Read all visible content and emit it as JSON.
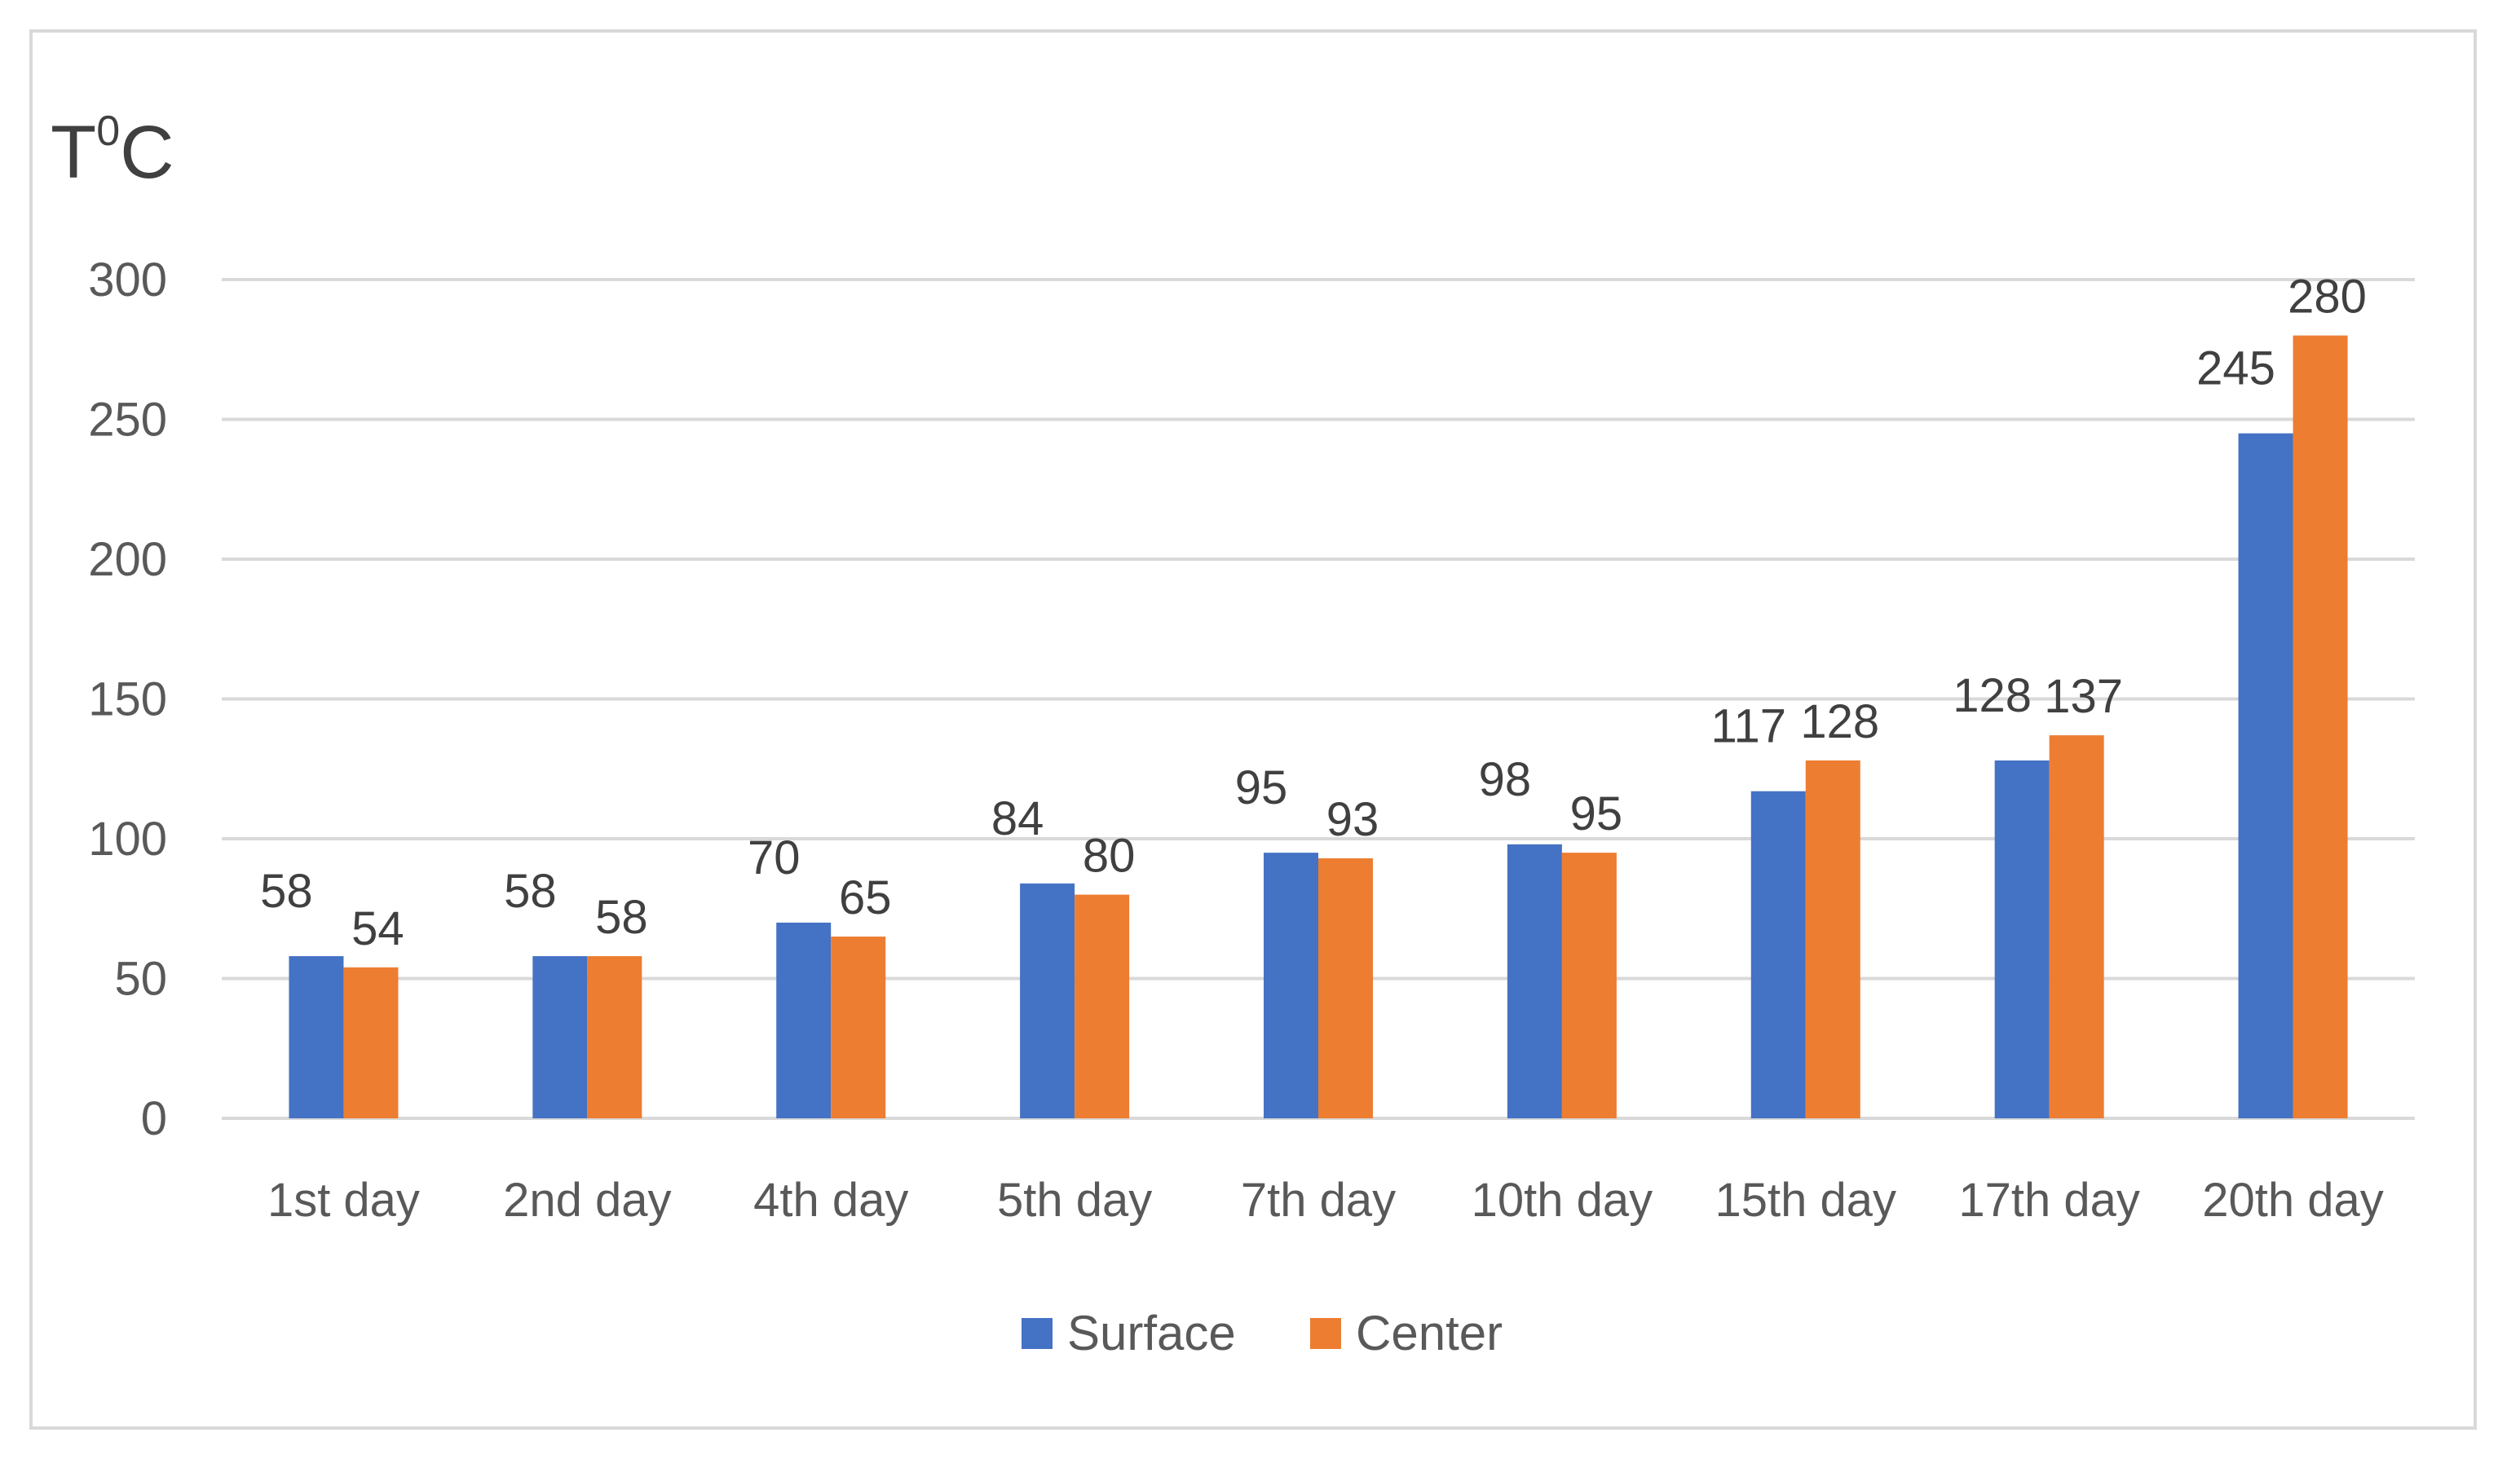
{
  "chart_data": {
    "type": "bar",
    "title": "",
    "xlabel": "",
    "ylabel": {
      "base": "T",
      "sup": "0",
      "unit": "C"
    },
    "ylim": [
      0,
      300
    ],
    "yticks": [
      0,
      50,
      100,
      150,
      200,
      250,
      300
    ],
    "grid": true,
    "legend_position": "bottom",
    "categories": [
      "1st day",
      "2nd day",
      "4th day",
      "5th day",
      "7th day",
      "10th day",
      "15th day",
      "17th day",
      "20th day"
    ],
    "series": [
      {
        "name": "Surface",
        "color": "#4472c4",
        "values": [
          58,
          58,
          70,
          84,
          95,
          98,
          117,
          128,
          245
        ]
      },
      {
        "name": "Center",
        "color": "#ed7d31",
        "values": [
          54,
          58,
          65,
          80,
          93,
          95,
          128,
          137,
          280
        ]
      }
    ]
  }
}
